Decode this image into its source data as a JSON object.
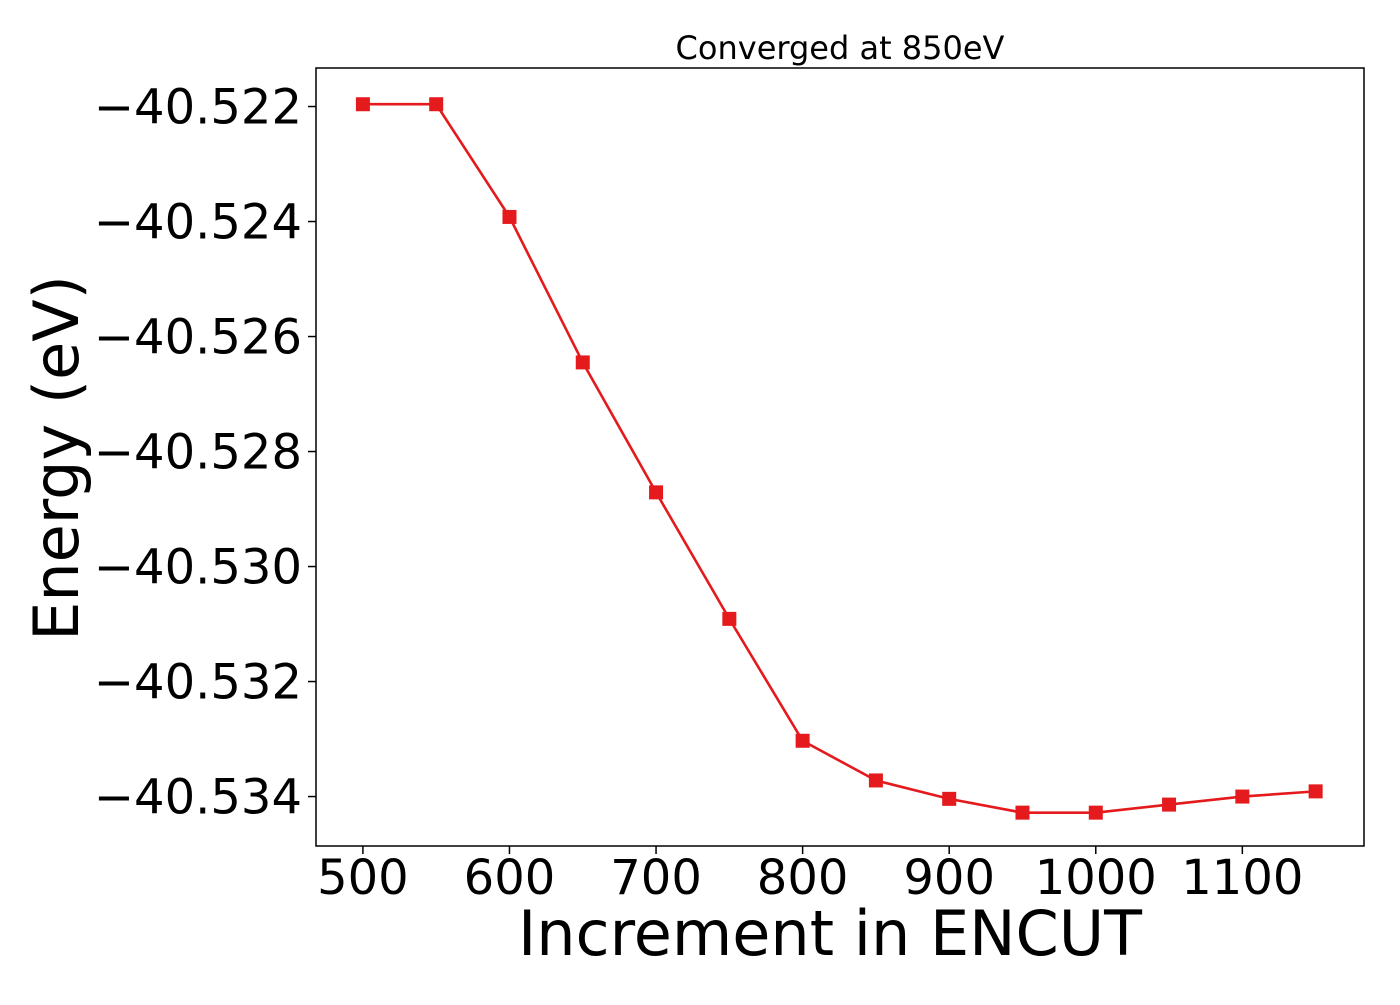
{
  "chart_data": {
    "type": "line",
    "title": "Converged at 850eV",
    "xlabel": "Increment in ENCUT",
    "ylabel": "Energy (eV)",
    "x": [
      500,
      550,
      600,
      650,
      700,
      750,
      800,
      850,
      900,
      950,
      1000,
      1050,
      1100,
      1150
    ],
    "series": [
      {
        "name": "Energy",
        "values": [
          -40.52196,
          -40.52196,
          -40.52392,
          -40.52645,
          -40.52871,
          -40.53091,
          -40.53303,
          -40.53372,
          -40.53404,
          -40.53428,
          -40.53428,
          -40.53414,
          -40.534,
          -40.53391
        ],
        "color": "#e41a1c",
        "marker": "square"
      }
    ],
    "xlim": [
      468,
      1183
    ],
    "ylim": [
      -40.53486,
      -40.52133
    ],
    "xticks": [
      500,
      600,
      700,
      800,
      900,
      1000,
      1100
    ],
    "xtick_labels": [
      "500",
      "600",
      "700",
      "800",
      "900",
      "1000",
      "1100"
    ],
    "yticks": [
      -40.522,
      -40.524,
      -40.526,
      -40.528,
      -40.53,
      -40.532,
      -40.534
    ],
    "ytick_labels": [
      "−40.522",
      "−40.524",
      "−40.526",
      "−40.528",
      "−40.530",
      "−40.532",
      "−40.534"
    ],
    "grid": false,
    "legend": "none"
  }
}
